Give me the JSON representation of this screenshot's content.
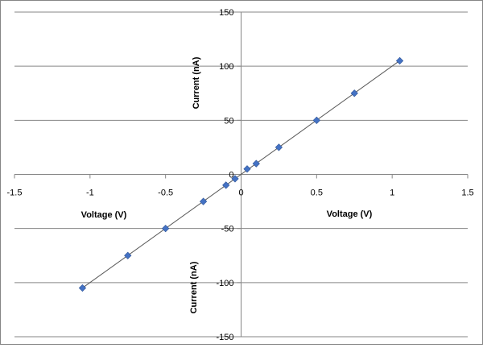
{
  "chart_data": {
    "type": "scatter",
    "title": "",
    "xlabel": "Voltage (V)",
    "ylabel": "Current (nA)",
    "xlim": [
      -1.5,
      1.5
    ],
    "ylim": [
      -150,
      150
    ],
    "x_ticks": [
      "-1.5",
      "-1",
      "-0.5",
      "0",
      "0.5",
      "1",
      "1.5"
    ],
    "y_ticks": [
      "150",
      "100",
      "50",
      "0",
      "-50",
      "-100",
      "-150"
    ],
    "grid": "horizontal",
    "legend": "none",
    "marker": "diamond",
    "marker_color": "#4472C4",
    "trendline": true,
    "trendline_color": "#595959",
    "series": [
      {
        "x": [
          -1.05,
          -0.75,
          -0.5,
          -0.25,
          -0.1,
          -0.04,
          0.04,
          0.1,
          0.25,
          0.5,
          0.75,
          1.05
        ],
        "y": [
          -105,
          -75,
          -50,
          -25,
          -10,
          -4,
          5,
          10,
          25,
          50,
          75,
          105
        ]
      }
    ]
  }
}
